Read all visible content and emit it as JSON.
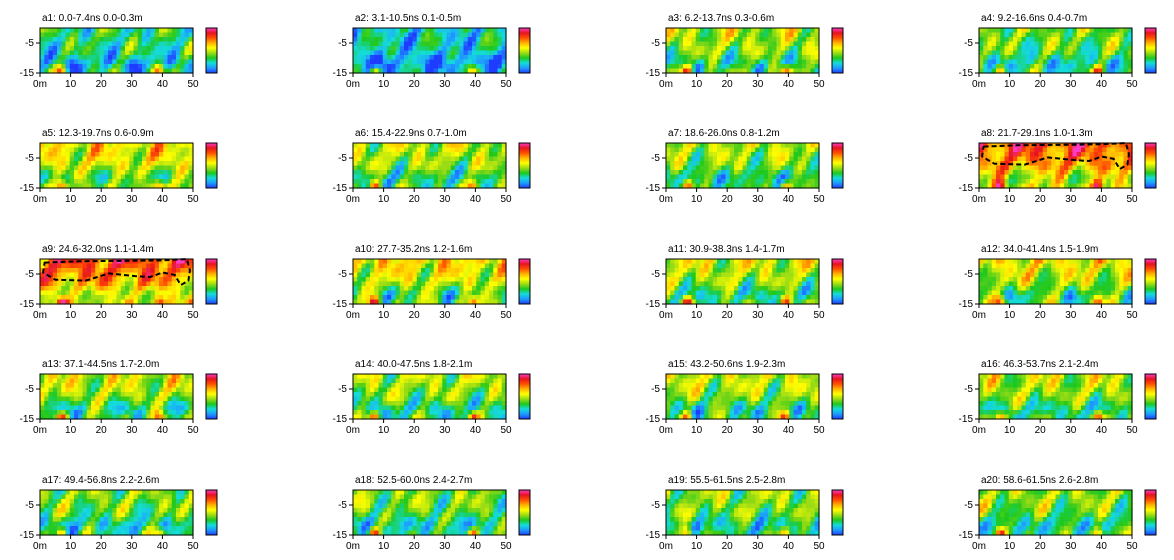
{
  "chart_data": {
    "type": "heatmap",
    "x_ticks": [
      "0m",
      "10",
      "20",
      "30",
      "40",
      "50"
    ],
    "y_ticks": [
      "-5",
      "-15"
    ],
    "xlim": [
      0,
      50
    ],
    "ylim": [
      -15,
      0
    ],
    "colorscale": [
      "#1e3cff",
      "#1e9bff",
      "#14dcdc",
      "#1ec81e",
      "#9bdc14",
      "#ffff00",
      "#ffb400",
      "#ff5000",
      "#e6141e",
      "#ff3cc8"
    ],
    "outline_color": "#000000",
    "panels": [
      {
        "label": "a1:  0.0-7.4ns  0.0-0.3m",
        "level": 0.3,
        "bias": 0.0,
        "outline": false
      },
      {
        "label": "a2:  3.1-10.5ns  0.1-0.5m",
        "level": 0.22,
        "bias": 0.0,
        "outline": false
      },
      {
        "label": "a3:  6.2-13.7ns  0.3-0.6m",
        "level": 0.4,
        "bias": 0.08,
        "outline": false
      },
      {
        "label": "a4:  9.2-16.6ns  0.4-0.7m",
        "level": 0.35,
        "bias": 0.05,
        "outline": false
      },
      {
        "label": "a5:  12.3-19.7ns  0.6-0.9m",
        "level": 0.45,
        "bias": 0.15,
        "outline": false
      },
      {
        "label": "a6:  15.4-22.9ns  0.7-1.0m",
        "level": 0.38,
        "bias": 0.12,
        "outline": false
      },
      {
        "label": "a7:  18.6-26.0ns  0.8-1.2m",
        "level": 0.36,
        "bias": 0.12,
        "outline": false
      },
      {
        "label": "a8:  21.7-29.1ns  1.0-1.3m",
        "level": 0.55,
        "bias": 0.3,
        "outline": true
      },
      {
        "label": "a9:  24.6-32.0ns  1.1-1.4m",
        "level": 0.55,
        "bias": 0.3,
        "outline": true
      },
      {
        "label": "a10:  27.7-35.2ns  1.2-1.6m",
        "level": 0.42,
        "bias": 0.2,
        "outline": false
      },
      {
        "label": "a11:  30.9-38.3ns  1.4-1.7m",
        "level": 0.38,
        "bias": 0.15,
        "outline": false
      },
      {
        "label": "a12:  34.0-41.4ns  1.5-1.9m",
        "level": 0.4,
        "bias": 0.18,
        "outline": false
      },
      {
        "label": "a13:  37.1-44.5ns  1.7-2.0m",
        "level": 0.38,
        "bias": 0.15,
        "outline": false
      },
      {
        "label": "a14:  40.0-47.5ns  1.8-2.1m",
        "level": 0.36,
        "bias": 0.12,
        "outline": false
      },
      {
        "label": "a15:  43.2-50.6ns  1.9-2.3m",
        "level": 0.37,
        "bias": 0.14,
        "outline": false
      },
      {
        "label": "a16:  46.3-53.7ns  2.1-2.4m",
        "level": 0.37,
        "bias": 0.14,
        "outline": false
      },
      {
        "label": "a17:  49.4-56.8ns  2.2-2.6m",
        "level": 0.34,
        "bias": 0.08,
        "outline": false
      },
      {
        "label": "a18:  52.5-60.0ns  2.4-2.7m",
        "level": 0.34,
        "bias": 0.08,
        "outline": false
      },
      {
        "label": "a19:  55.5-61.5ns  2.5-2.8m",
        "level": 0.35,
        "bias": 0.1,
        "outline": false
      },
      {
        "label": "a20:  58.6-61.5ns  2.6-2.8m",
        "level": 0.35,
        "bias": 0.1,
        "outline": false
      }
    ]
  }
}
